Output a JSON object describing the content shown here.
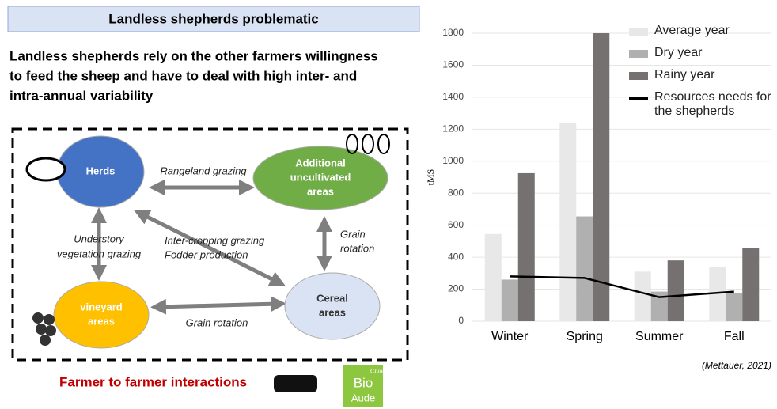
{
  "header": {
    "title": "Landless shepherds problematic"
  },
  "subtitle": [
    "Landless shepherds rely on the  other farmers willingness",
    "to feed the sheep and have to deal with high inter- and",
    "intra-annual variability"
  ],
  "diagram": {
    "nodes": [
      {
        "label": [
          "Herds"
        ],
        "color": "#4472c4"
      },
      {
        "label": [
          "Additional",
          "uncultivated",
          "areas"
        ],
        "color": "#70ad47"
      },
      {
        "label": [
          "vineyard",
          "areas"
        ],
        "color": "#ffc000"
      },
      {
        "label": [
          "Cereal",
          "areas"
        ],
        "color": "#dae3f3"
      }
    ],
    "edges": [
      {
        "label": [
          "Rangeland grazing"
        ]
      },
      {
        "label": [
          "Understory",
          "vegetation grazing"
        ]
      },
      {
        "label": [
          "Inter-cropping grazing",
          "Fodder production"
        ]
      },
      {
        "label": [
          "Grain",
          "rotation"
        ]
      },
      {
        "label": [
          "Grain rotation"
        ]
      }
    ]
  },
  "footer": {
    "text": "Farmer to farmer interactions",
    "logo": [
      "Civam",
      "Bio",
      "Aude"
    ]
  },
  "chart_data": {
    "type": "bar",
    "y_label": "tMS",
    "categories": [
      "Winter",
      "Spring",
      "Summer",
      "Fall"
    ],
    "series": [
      {
        "name": "Average year",
        "type": "bar",
        "color": "#e8e8e8",
        "values": [
          545,
          1240,
          310,
          340
        ]
      },
      {
        "name": "Dry year",
        "type": "bar",
        "color": "#b0b0b0",
        "values": [
          260,
          655,
          185,
          175
        ]
      },
      {
        "name": "Rainy year",
        "type": "bar",
        "color": "#767171",
        "values": [
          925,
          1800,
          380,
          455
        ]
      },
      {
        "name": "Resources needs for the shepherds",
        "type": "line",
        "color": "#000000",
        "values": [
          280,
          270,
          150,
          185
        ]
      }
    ],
    "ylim": [
      0,
      1800
    ],
    "yticks": [
      0,
      200,
      400,
      600,
      800,
      1000,
      1200,
      1400,
      1600,
      1800
    ],
    "grid": true,
    "source": "(Mettauer, 2021)"
  }
}
